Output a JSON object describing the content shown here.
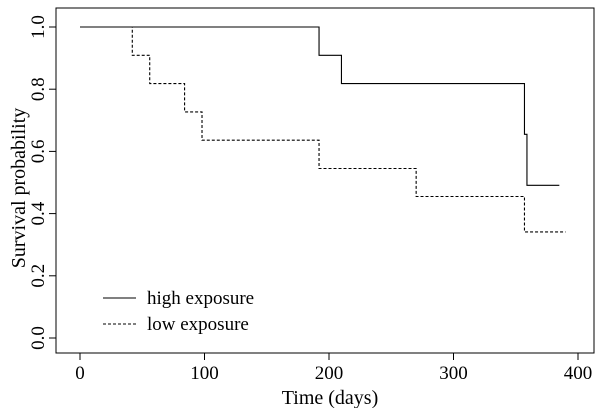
{
  "chart_data": {
    "type": "line",
    "subtype": "step",
    "title": "",
    "xlabel": "Time (days)",
    "ylabel": "Survival probability",
    "xlim": [
      0,
      400
    ],
    "ylim": [
      0,
      1
    ],
    "x_ticks": [
      0,
      100,
      200,
      300,
      400
    ],
    "x_tick_labels": [
      "0",
      "100",
      "200",
      "300",
      "400"
    ],
    "y_ticks": [
      0,
      0.2,
      0.4,
      0.6,
      0.8,
      1.0
    ],
    "y_tick_labels": [
      "0.0",
      "0.2",
      "0.4",
      "0.6",
      "0.8",
      "1.0"
    ],
    "grid": false,
    "legend": "bottom-left",
    "series": [
      {
        "name": "high exposure",
        "line_style": "solid",
        "color": "#000000",
        "x": [
          0,
          192,
          210,
          357,
          359,
          385
        ],
        "y": [
          1.0,
          0.909,
          0.818,
          0.655,
          0.491,
          0.491
        ]
      },
      {
        "name": "low exposure",
        "line_style": "dashed",
        "color": "#000000",
        "x": [
          0,
          42,
          56,
          84,
          98,
          192,
          270,
          357,
          390
        ],
        "y": [
          1.0,
          0.909,
          0.818,
          0.727,
          0.636,
          0.545,
          0.455,
          0.341,
          0.341
        ]
      }
    ]
  }
}
